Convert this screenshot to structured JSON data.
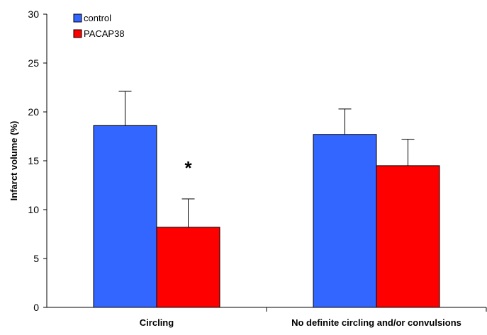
{
  "chart_data": {
    "type": "bar",
    "title": "",
    "xlabel": "",
    "ylabel": "Infarct volume (%)",
    "ylim": [
      0,
      30
    ],
    "yticks": [
      0,
      5,
      10,
      15,
      20,
      25,
      30
    ],
    "categories": [
      "Circling",
      "No definite circling and/or convulsions"
    ],
    "series": [
      {
        "name": "control",
        "color": "#3366ff",
        "values": [
          18.6,
          17.7
        ],
        "errors": [
          3.5,
          2.6
        ]
      },
      {
        "name": "PACAP38",
        "color": "#ff0000",
        "values": [
          8.2,
          14.5
        ],
        "errors": [
          2.9,
          2.7
        ]
      }
    ],
    "annotations": [
      {
        "text": "*",
        "category_index": 0,
        "series_index": 1,
        "y": 14.5
      }
    ],
    "legend": {
      "placement": "top-left"
    },
    "grid": false
  }
}
